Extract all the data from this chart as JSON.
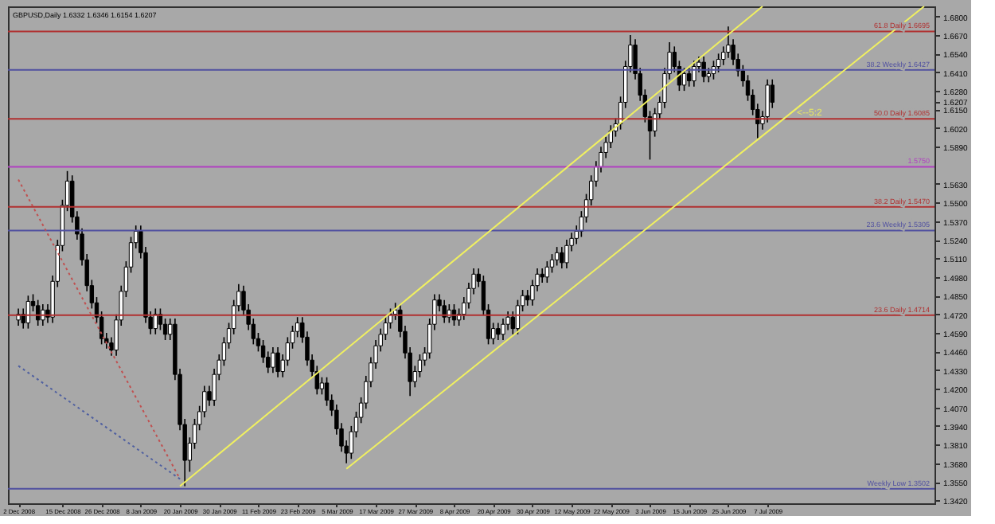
{
  "chart_data": {
    "type": "candlestick",
    "title": "GBPUSD,Daily 1.6332 1.6346 1.6154 1.6207",
    "categories": [
      "2 Dec 2008",
      null,
      null,
      null,
      null,
      null,
      null,
      null,
      null,
      "15 Dec 2008",
      null,
      null,
      null,
      null,
      null,
      null,
      null,
      "26 Dec 2008",
      null,
      null,
      null,
      null,
      null,
      null,
      null,
      "8 Jan 2009",
      null,
      null,
      null,
      null,
      null,
      null,
      null,
      "20 Jan 2009",
      null,
      null,
      null,
      null,
      null,
      null,
      null,
      "30 Jan 2009",
      null,
      null,
      null,
      null,
      null,
      null,
      null,
      "11 Feb 2009",
      null,
      null,
      null,
      null,
      null,
      null,
      null,
      "23 Feb 2009",
      null,
      null,
      null,
      null,
      null,
      null,
      null,
      "5 Mar 2009",
      null,
      null,
      null,
      null,
      null,
      null,
      null,
      "17 Mar 2009",
      null,
      null,
      null,
      null,
      null,
      null,
      null,
      "27 Mar 2009",
      null,
      null,
      null,
      null,
      null,
      null,
      null,
      "8 Apr 2009",
      null,
      null,
      null,
      null,
      null,
      null,
      null,
      "20 Apr 2009",
      null,
      null,
      null,
      null,
      null,
      null,
      null,
      "30 Apr 2009",
      null,
      null,
      null,
      null,
      null,
      null,
      null,
      "12 May 2009",
      null,
      null,
      null,
      null,
      null,
      null,
      null,
      "22 May 2009",
      null,
      null,
      null,
      null,
      null,
      null,
      null,
      "3 Jun 2009",
      null,
      null,
      null,
      null,
      null,
      null,
      null,
      "15 Jun 2009",
      null,
      null,
      null,
      null,
      null,
      null,
      null,
      "25 Jun 2009",
      null,
      null,
      null,
      null,
      null,
      null,
      null,
      "7 Jul 2009",
      null,
      null,
      null,
      null,
      null,
      null,
      null,
      null,
      null,
      null,
      null,
      null,
      null,
      null,
      null,
      null,
      null,
      null,
      null,
      null,
      null,
      null,
      null,
      null,
      null,
      null,
      null,
      null,
      null,
      null,
      null,
      null
    ],
    "ohlc": [
      [
        1.468,
        1.476,
        1.464,
        1.472
      ],
      [
        1.472,
        1.476,
        1.462,
        1.466
      ],
      [
        1.466,
        1.485,
        1.462,
        1.481
      ],
      [
        1.481,
        1.486,
        1.474,
        1.478
      ],
      [
        1.478,
        1.482,
        1.464,
        1.468
      ],
      [
        1.468,
        1.479,
        1.464,
        1.475
      ],
      [
        1.475,
        1.479,
        1.466,
        1.47
      ],
      [
        1.47,
        1.499,
        1.466,
        1.495
      ],
      [
        1.495,
        1.524,
        1.491,
        1.52
      ],
      [
        1.52,
        1.552,
        1.516,
        1.548
      ],
      [
        1.548,
        1.572,
        1.544,
        1.565
      ],
      [
        1.565,
        1.569,
        1.536,
        1.54
      ],
      [
        1.54,
        1.544,
        1.524,
        1.528
      ],
      [
        1.528,
        1.532,
        1.506,
        1.51
      ],
      [
        1.51,
        1.514,
        1.488,
        1.492
      ],
      [
        1.492,
        1.496,
        1.476,
        1.48
      ],
      [
        1.48,
        1.484,
        1.466,
        1.47
      ],
      [
        1.47,
        1.474,
        1.451,
        1.455
      ],
      [
        1.455,
        1.459,
        1.448,
        1.452
      ],
      [
        1.452,
        1.456,
        1.443,
        1.447
      ],
      [
        1.447,
        1.472,
        1.443,
        1.468
      ],
      [
        1.468,
        1.492,
        1.464,
        1.488
      ],
      [
        1.488,
        1.509,
        1.484,
        1.505
      ],
      [
        1.505,
        1.526,
        1.501,
        1.522
      ],
      [
        1.522,
        1.534,
        1.518,
        1.53
      ],
      [
        1.53,
        1.534,
        1.511,
        1.515
      ],
      [
        1.515,
        1.519,
        1.466,
        1.47
      ],
      [
        1.47,
        1.474,
        1.458,
        1.462
      ],
      [
        1.462,
        1.476,
        1.458,
        1.472
      ],
      [
        1.472,
        1.476,
        1.461,
        1.465
      ],
      [
        1.465,
        1.469,
        1.454,
        1.458
      ],
      [
        1.458,
        1.469,
        1.454,
        1.465
      ],
      [
        1.465,
        1.469,
        1.426,
        1.43
      ],
      [
        1.43,
        1.434,
        1.391,
        1.395
      ],
      [
        1.395,
        1.399,
        1.352,
        1.37
      ],
      [
        1.37,
        1.386,
        1.362,
        1.382
      ],
      [
        1.382,
        1.399,
        1.378,
        1.395
      ],
      [
        1.395,
        1.408,
        1.391,
        1.404
      ],
      [
        1.404,
        1.422,
        1.4,
        1.418
      ],
      [
        1.418,
        1.422,
        1.408,
        1.412
      ],
      [
        1.412,
        1.434,
        1.408,
        1.43
      ],
      [
        1.43,
        1.444,
        1.426,
        1.44
      ],
      [
        1.44,
        1.456,
        1.436,
        1.452
      ],
      [
        1.452,
        1.466,
        1.448,
        1.462
      ],
      [
        1.462,
        1.482,
        1.458,
        1.478
      ],
      [
        1.478,
        1.493,
        1.474,
        1.488
      ],
      [
        1.488,
        1.492,
        1.471,
        1.475
      ],
      [
        1.475,
        1.479,
        1.461,
        1.465
      ],
      [
        1.465,
        1.469,
        1.451,
        1.455
      ],
      [
        1.455,
        1.459,
        1.446,
        1.45
      ],
      [
        1.45,
        1.454,
        1.438,
        1.442
      ],
      [
        1.442,
        1.446,
        1.431,
        1.435
      ],
      [
        1.435,
        1.449,
        1.431,
        1.445
      ],
      [
        1.445,
        1.449,
        1.428,
        1.432
      ],
      [
        1.432,
        1.444,
        1.428,
        1.44
      ],
      [
        1.44,
        1.456,
        1.436,
        1.452
      ],
      [
        1.452,
        1.464,
        1.448,
        1.46
      ],
      [
        1.46,
        1.47,
        1.456,
        1.466
      ],
      [
        1.466,
        1.47,
        1.452,
        1.456
      ],
      [
        1.456,
        1.46,
        1.436,
        1.44
      ],
      [
        1.44,
        1.444,
        1.428,
        1.432
      ],
      [
        1.432,
        1.436,
        1.416,
        1.42
      ],
      [
        1.42,
        1.428,
        1.416,
        1.424
      ],
      [
        1.424,
        1.428,
        1.408,
        1.412
      ],
      [
        1.412,
        1.416,
        1.401,
        1.405
      ],
      [
        1.405,
        1.409,
        1.388,
        1.392
      ],
      [
        1.392,
        1.396,
        1.376,
        1.38
      ],
      [
        1.38,
        1.384,
        1.368,
        1.375
      ],
      [
        1.375,
        1.394,
        1.371,
        1.39
      ],
      [
        1.39,
        1.404,
        1.386,
        1.4
      ],
      [
        1.4,
        1.414,
        1.396,
        1.41
      ],
      [
        1.41,
        1.429,
        1.406,
        1.425
      ],
      [
        1.425,
        1.442,
        1.421,
        1.438
      ],
      [
        1.438,
        1.454,
        1.434,
        1.45
      ],
      [
        1.45,
        1.462,
        1.446,
        1.458
      ],
      [
        1.458,
        1.47,
        1.454,
        1.466
      ],
      [
        1.466,
        1.476,
        1.462,
        1.472
      ],
      [
        1.472,
        1.48,
        1.468,
        1.475
      ],
      [
        1.475,
        1.479,
        1.456,
        1.46
      ],
      [
        1.46,
        1.464,
        1.441,
        1.445
      ],
      [
        1.445,
        1.449,
        1.415,
        1.425
      ],
      [
        1.425,
        1.436,
        1.421,
        1.432
      ],
      [
        1.432,
        1.444,
        1.428,
        1.44
      ],
      [
        1.44,
        1.449,
        1.436,
        1.445
      ],
      [
        1.445,
        1.469,
        1.441,
        1.465
      ],
      [
        1.465,
        1.486,
        1.461,
        1.482
      ],
      [
        1.482,
        1.486,
        1.474,
        1.478
      ],
      [
        1.478,
        1.482,
        1.466,
        1.47
      ],
      [
        1.47,
        1.479,
        1.466,
        1.475
      ],
      [
        1.475,
        1.479,
        1.464,
        1.468
      ],
      [
        1.468,
        1.476,
        1.464,
        1.472
      ],
      [
        1.472,
        1.484,
        1.468,
        1.48
      ],
      [
        1.48,
        1.494,
        1.476,
        1.49
      ],
      [
        1.49,
        1.504,
        1.486,
        1.5
      ],
      [
        1.5,
        1.504,
        1.491,
        1.495
      ],
      [
        1.495,
        1.499,
        1.471,
        1.475
      ],
      [
        1.475,
        1.479,
        1.451,
        1.455
      ],
      [
        1.455,
        1.466,
        1.451,
        1.462
      ],
      [
        1.462,
        1.466,
        1.454,
        1.458
      ],
      [
        1.458,
        1.469,
        1.454,
        1.465
      ],
      [
        1.465,
        1.474,
        1.461,
        1.47
      ],
      [
        1.47,
        1.474,
        1.458,
        1.462
      ],
      [
        1.462,
        1.482,
        1.458,
        1.478
      ],
      [
        1.478,
        1.489,
        1.474,
        1.485
      ],
      [
        1.485,
        1.489,
        1.478,
        1.482
      ],
      [
        1.482,
        1.496,
        1.478,
        1.492
      ],
      [
        1.492,
        1.504,
        1.488,
        1.5
      ],
      [
        1.5,
        1.504,
        1.494,
        1.498
      ],
      [
        1.498,
        1.509,
        1.494,
        1.505
      ],
      [
        1.505,
        1.514,
        1.501,
        1.51
      ],
      [
        1.51,
        1.519,
        1.506,
        1.515
      ],
      [
        1.515,
        1.519,
        1.504,
        1.508
      ],
      [
        1.508,
        1.524,
        1.504,
        1.52
      ],
      [
        1.52,
        1.529,
        1.516,
        1.525
      ],
      [
        1.525,
        1.534,
        1.521,
        1.53
      ],
      [
        1.53,
        1.544,
        1.526,
        1.54
      ],
      [
        1.54,
        1.556,
        1.536,
        1.552
      ],
      [
        1.552,
        1.569,
        1.548,
        1.565
      ],
      [
        1.565,
        1.579,
        1.561,
        1.575
      ],
      [
        1.575,
        1.589,
        1.571,
        1.585
      ],
      [
        1.585,
        1.596,
        1.581,
        1.592
      ],
      [
        1.592,
        1.604,
        1.588,
        1.6
      ],
      [
        1.6,
        1.609,
        1.596,
        1.605
      ],
      [
        1.605,
        1.624,
        1.601,
        1.62
      ],
      [
        1.62,
        1.649,
        1.616,
        1.645
      ],
      [
        1.645,
        1.667,
        1.641,
        1.66
      ],
      [
        1.66,
        1.664,
        1.636,
        1.64
      ],
      [
        1.64,
        1.644,
        1.621,
        1.625
      ],
      [
        1.625,
        1.629,
        1.606,
        1.61
      ],
      [
        1.61,
        1.614,
        1.58,
        1.6
      ],
      [
        1.6,
        1.616,
        1.596,
        1.612
      ],
      [
        1.612,
        1.624,
        1.608,
        1.62
      ],
      [
        1.62,
        1.644,
        1.616,
        1.64
      ],
      [
        1.64,
        1.662,
        1.636,
        1.655
      ],
      [
        1.655,
        1.659,
        1.641,
        1.645
      ],
      [
        1.645,
        1.649,
        1.628,
        1.632
      ],
      [
        1.632,
        1.644,
        1.628,
        1.64
      ],
      [
        1.64,
        1.644,
        1.631,
        1.635
      ],
      [
        1.635,
        1.649,
        1.631,
        1.645
      ],
      [
        1.645,
        1.652,
        1.641,
        1.648
      ],
      [
        1.648,
        1.652,
        1.634,
        1.638
      ],
      [
        1.638,
        1.644,
        1.634,
        1.64
      ],
      [
        1.64,
        1.649,
        1.636,
        1.645
      ],
      [
        1.645,
        1.654,
        1.641,
        1.65
      ],
      [
        1.65,
        1.659,
        1.646,
        1.655
      ],
      [
        1.655,
        1.673,
        1.651,
        1.66
      ],
      [
        1.66,
        1.664,
        1.646,
        1.65
      ],
      [
        1.65,
        1.654,
        1.638,
        1.642
      ],
      [
        1.642,
        1.646,
        1.631,
        1.635
      ],
      [
        1.635,
        1.639,
        1.621,
        1.625
      ],
      [
        1.625,
        1.629,
        1.611,
        1.615
      ],
      [
        1.615,
        1.619,
        1.595,
        1.605
      ],
      [
        1.605,
        1.614,
        1.601,
        1.61
      ],
      [
        1.61,
        1.636,
        1.606,
        1.632
      ],
      [
        1.632,
        1.636,
        1.616,
        1.62
      ],
      null,
      null,
      null,
      null,
      null,
      null,
      null,
      null,
      null,
      null,
      null,
      null,
      null,
      null,
      null,
      null,
      null,
      null,
      null,
      null,
      null,
      null,
      null,
      null,
      null,
      null,
      null,
      null,
      null,
      null,
      null
    ],
    "series": [
      {
        "type": "line",
        "color": "#c05050",
        "line_style": "dotted",
        "values": [
          1.566,
          null,
          null,
          null,
          null,
          null,
          null,
          null,
          null,
          null,
          null,
          null,
          null,
          null,
          null,
          null,
          null,
          null,
          null,
          null,
          null,
          null,
          null,
          null,
          null,
          null,
          null,
          null,
          null,
          null,
          null,
          null,
          null,
          1.357,
          null,
          null,
          null,
          null,
          null,
          null,
          null,
          null,
          null,
          null,
          null,
          null,
          null,
          null,
          null,
          null,
          null,
          null,
          null,
          null,
          null,
          null,
          null,
          null,
          null,
          null,
          null,
          null,
          null,
          null,
          null,
          null,
          null,
          null,
          null,
          null,
          null,
          null,
          null,
          null,
          null,
          null,
          null,
          null,
          null,
          null,
          null,
          null,
          null,
          null,
          null,
          null,
          null,
          null,
          null,
          null,
          null,
          null,
          null,
          null,
          null,
          null,
          null,
          null,
          null,
          null,
          null,
          null,
          null,
          null,
          null,
          null,
          null,
          null,
          null,
          null,
          null,
          null,
          null,
          null,
          null,
          null,
          null,
          null,
          null,
          null,
          null,
          null,
          null,
          null,
          null,
          null,
          null,
          null,
          null,
          null,
          null,
          null,
          null,
          null,
          null,
          null,
          null,
          null,
          null,
          null,
          null,
          null,
          null,
          null,
          null,
          null,
          null,
          null,
          null,
          null,
          null,
          null,
          null,
          null,
          null,
          null,
          null,
          null,
          null,
          null,
          null,
          null,
          null,
          null,
          null,
          null,
          null,
          null,
          null,
          null,
          null,
          null,
          null,
          null,
          null,
          null,
          null,
          null,
          null,
          null,
          null,
          null,
          null,
          null,
          null,
          null
        ]
      },
      {
        "type": "line",
        "color": "#5060a0",
        "line_style": "dotted",
        "values": [
          1.436,
          null,
          null,
          null,
          null,
          null,
          null,
          null,
          null,
          null,
          null,
          null,
          null,
          null,
          null,
          null,
          null,
          null,
          null,
          null,
          null,
          null,
          null,
          null,
          null,
          null,
          null,
          null,
          null,
          null,
          null,
          null,
          null,
          1.357,
          null,
          null,
          null,
          null,
          null,
          null,
          null,
          null,
          null,
          null,
          null,
          null,
          null,
          null,
          null,
          null,
          null,
          null,
          null,
          null,
          null,
          null,
          null,
          null,
          null,
          null,
          null,
          null,
          null,
          null,
          null,
          null,
          null,
          null,
          null,
          null,
          null,
          null,
          null,
          null,
          null,
          null,
          null,
          null,
          null,
          null,
          null,
          null,
          null,
          null,
          null,
          null,
          null,
          null,
          null,
          null,
          null,
          null,
          null,
          null,
          null,
          null,
          null,
          null,
          null,
          null,
          null,
          null,
          null,
          null,
          null,
          null,
          null,
          null,
          null,
          null,
          null,
          null,
          null,
          null,
          null,
          null,
          null,
          null,
          null,
          null,
          null,
          null,
          null,
          null,
          null,
          null,
          null,
          null,
          null,
          null,
          null,
          null,
          null,
          null,
          null,
          null,
          null,
          null,
          null,
          null,
          null,
          null,
          null,
          null,
          null,
          null,
          null,
          null,
          null,
          null,
          null,
          null,
          null,
          null,
          null,
          null,
          null,
          null,
          null,
          null,
          null,
          null,
          null,
          null,
          null,
          null,
          null,
          null,
          null,
          null,
          null,
          null,
          null,
          null,
          null,
          null,
          null,
          null,
          null,
          null,
          null,
          null,
          null,
          null,
          null,
          null
        ]
      },
      {
        "type": "line",
        "color": "#f0f060",
        "line_style": "solid",
        "values": [
          null,
          null,
          null,
          null,
          null,
          null,
          null,
          null,
          null,
          null,
          null,
          null,
          null,
          null,
          null,
          null,
          null,
          null,
          null,
          null,
          null,
          null,
          null,
          null,
          null,
          null,
          null,
          null,
          null,
          null,
          null,
          null,
          null,
          1.352,
          null,
          null,
          null,
          null,
          null,
          null,
          null,
          null,
          null,
          null,
          null,
          null,
          null,
          null,
          null,
          null,
          null,
          null,
          null,
          null,
          null,
          null,
          null,
          null,
          null,
          null,
          null,
          null,
          null,
          null,
          null,
          null,
          null,
          null,
          null,
          null,
          null,
          null,
          null,
          null,
          null,
          null,
          null,
          null,
          null,
          null,
          null,
          null,
          null,
          null,
          null,
          null,
          null,
          null,
          null,
          null,
          null,
          null,
          null,
          null,
          null,
          null,
          null,
          null,
          null,
          null,
          null,
          null,
          null,
          null,
          null,
          null,
          null,
          null,
          null,
          null,
          null,
          null,
          null,
          null,
          null,
          null,
          null,
          null,
          null,
          null,
          null,
          null,
          null,
          null,
          null,
          null,
          null,
          null,
          null,
          null,
          null,
          null,
          null,
          null,
          null,
          null,
          null,
          null,
          null,
          null,
          null,
          null,
          null,
          null,
          null,
          null,
          null,
          null,
          null,
          null,
          null,
          null,
          1.687,
          null,
          null,
          null,
          null,
          null,
          null,
          null,
          null,
          null,
          null,
          null,
          null,
          null,
          null,
          null,
          null,
          null,
          null,
          null,
          null,
          null,
          null,
          null,
          null,
          null,
          null,
          null,
          null,
          null,
          null,
          null,
          null,
          null
        ]
      },
      {
        "type": "line",
        "color": "#f0f060",
        "line_style": "solid",
        "values": [
          null,
          null,
          null,
          null,
          null,
          null,
          null,
          null,
          null,
          null,
          null,
          null,
          null,
          null,
          null,
          null,
          null,
          null,
          null,
          null,
          null,
          null,
          null,
          null,
          null,
          null,
          null,
          null,
          null,
          null,
          null,
          null,
          null,
          null,
          null,
          null,
          null,
          null,
          null,
          null,
          null,
          null,
          null,
          null,
          null,
          null,
          null,
          null,
          null,
          null,
          null,
          null,
          null,
          null,
          null,
          null,
          null,
          null,
          null,
          null,
          null,
          null,
          null,
          null,
          null,
          null,
          null,
          1.364,
          null,
          null,
          null,
          null,
          null,
          null,
          null,
          null,
          null,
          null,
          null,
          null,
          null,
          null,
          null,
          null,
          null,
          null,
          null,
          null,
          null,
          null,
          null,
          null,
          null,
          null,
          null,
          null,
          null,
          null,
          null,
          null,
          null,
          null,
          null,
          null,
          null,
          null,
          null,
          null,
          null,
          null,
          null,
          null,
          null,
          null,
          null,
          null,
          null,
          null,
          null,
          null,
          null,
          null,
          null,
          null,
          null,
          null,
          null,
          null,
          null,
          null,
          null,
          null,
          null,
          null,
          null,
          null,
          null,
          null,
          null,
          null,
          null,
          null,
          null,
          null,
          null,
          null,
          null,
          null,
          null,
          null,
          null,
          null,
          null,
          null,
          null,
          null,
          null,
          null,
          null,
          null,
          null,
          null,
          null,
          null,
          null,
          null,
          null,
          null,
          null,
          null,
          null,
          null,
          null,
          null,
          null,
          null,
          null,
          null,
          null,
          null,
          null,
          null,
          null,
          null,
          null,
          1.687
        ]
      }
    ],
    "ylim": [
      1.34,
      1.687
    ],
    "yticks": [
      {
        "value": 1.342,
        "label": "1.3420"
      },
      {
        "value": 1.355,
        "label": "1.3550"
      },
      {
        "value": 1.368,
        "label": "1.3680"
      },
      {
        "value": 1.381,
        "label": "1.3810"
      },
      {
        "value": 1.394,
        "label": "1.3940"
      },
      {
        "value": 1.407,
        "label": "1.4070"
      },
      {
        "value": 1.42,
        "label": "1.4200"
      },
      {
        "value": 1.433,
        "label": "1.4330"
      },
      {
        "value": 1.446,
        "label": "1.4460"
      },
      {
        "value": 1.459,
        "label": "1.4590"
      },
      {
        "value": 1.472,
        "label": "1.4720"
      },
      {
        "value": 1.485,
        "label": "1.4850"
      },
      {
        "value": 1.498,
        "label": "1.4980"
      },
      {
        "value": 1.511,
        "label": "1.5110"
      },
      {
        "value": 1.524,
        "label": "1.5240"
      },
      {
        "value": 1.537,
        "label": "1.5370"
      },
      {
        "value": 1.55,
        "label": "1.5500"
      },
      {
        "value": 1.563,
        "label": "1.5630"
      },
      {
        "value": 1.589,
        "label": "1.5890"
      },
      {
        "value": 1.602,
        "label": "1.6020"
      },
      {
        "value": 1.615,
        "label": "1.6150"
      },
      {
        "value": 1.6207,
        "label": "1.6207"
      },
      {
        "value": 1.628,
        "label": "1.6280"
      },
      {
        "value": 1.641,
        "label": "1.6410"
      },
      {
        "value": 1.654,
        "label": "1.6540"
      },
      {
        "value": 1.667,
        "label": "1.6670"
      },
      {
        "value": 1.68,
        "label": "1.6800"
      }
    ],
    "ref_lines": [
      {
        "axis": "y",
        "value": 1.6695,
        "label": "61.8 Daily  1.6695",
        "color": "#b03030"
      },
      {
        "axis": "y",
        "value": 1.6427,
        "label": "38.2 Weekly  1.6427",
        "color": "#5050a0"
      },
      {
        "axis": "y",
        "value": 1.6085,
        "label": "50.0 Daily  1.6085",
        "color": "#b03030"
      },
      {
        "axis": "y",
        "value": 1.575,
        "label": "1.5750",
        "color": "#b040c0"
      },
      {
        "axis": "y",
        "value": 1.547,
        "label": "38.2 Daily  1.5470",
        "color": "#b03030"
      },
      {
        "axis": "y",
        "value": 1.5305,
        "label": "23.6 Weekly  1.5305",
        "color": "#5050a0"
      },
      {
        "axis": "y",
        "value": 1.4714,
        "label": "23.6 Daily  1.4714",
        "color": "#b03030"
      },
      {
        "axis": "y",
        "value": 1.3502,
        "label": "Weekly Low  1.3502",
        "color": "#5050a0"
      }
    ],
    "annotations": [
      {
        "text": "<--5:2",
        "y": 1.613
      }
    ]
  }
}
